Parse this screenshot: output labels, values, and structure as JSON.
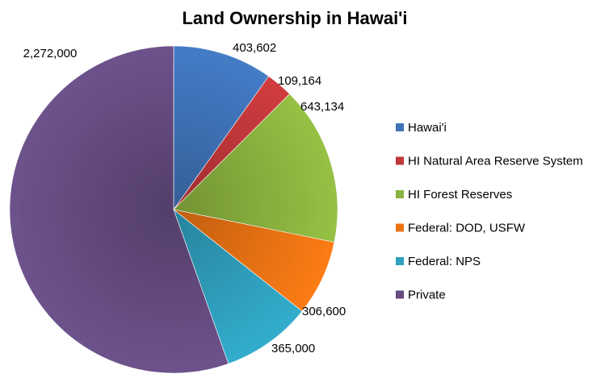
{
  "chart_data": {
    "type": "pie",
    "title": "Land Ownership in Hawai'i",
    "legend_position": "right",
    "slices": [
      {
        "name": "Hawai'i",
        "value": 403602,
        "label": "403,602",
        "color": "#3f73b8"
      },
      {
        "name": "HI Natural Area Reserve System",
        "value": 109164,
        "label": "109,164",
        "color": "#c2383a"
      },
      {
        "name": "HI Forest Reserves",
        "value": 643134,
        "label": "643,134",
        "color": "#8bb33f"
      },
      {
        "name": "Federal: DOD, USFW",
        "value": 306600,
        "label": "306,600",
        "color": "#ea7313"
      },
      {
        "name": "Federal: NPS",
        "value": 365000,
        "label": "365,000",
        "color": "#2fa0be"
      },
      {
        "name": "Private",
        "value": 2272000,
        "label": "2,272,000",
        "color": "#654c81"
      }
    ]
  }
}
